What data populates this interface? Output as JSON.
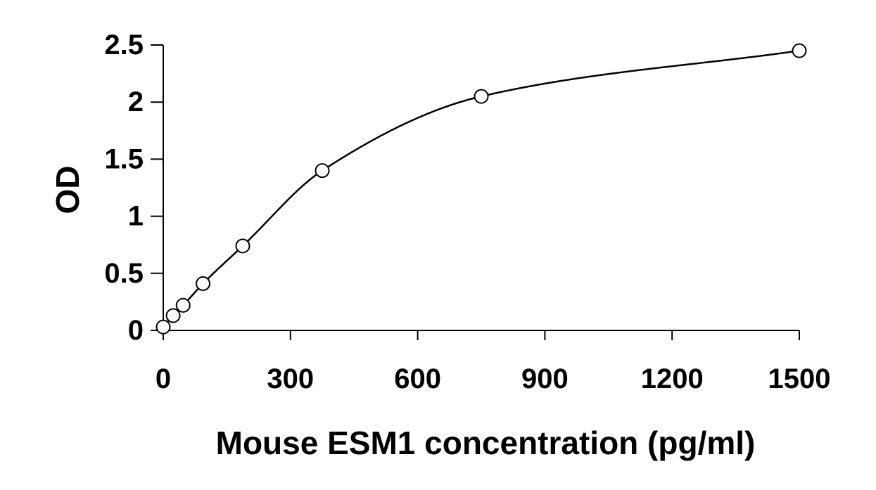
{
  "chart_data": {
    "type": "scatter",
    "xlabel": "Mouse ESM1 concentration (pg/ml)",
    "ylabel": "OD",
    "xlim": [
      0,
      1500
    ],
    "ylim": [
      0,
      2.5
    ],
    "x_ticks": [
      0,
      300,
      600,
      900,
      1200,
      1500
    ],
    "x_tick_labels": [
      "0",
      "300",
      "600",
      "900",
      "1200",
      "1500"
    ],
    "y_ticks": [
      0,
      0.5,
      1,
      1.5,
      2,
      2.5
    ],
    "y_tick_labels": [
      "0",
      "0.5",
      "1",
      "1.5",
      "2",
      "2.5"
    ],
    "grid": false,
    "series": [
      {
        "points": [
          {
            "x": 0,
            "y": 0.03
          },
          {
            "x": 23.4,
            "y": 0.13
          },
          {
            "x": 46.9,
            "y": 0.22
          },
          {
            "x": 93.8,
            "y": 0.41
          },
          {
            "x": 187.5,
            "y": 0.74
          },
          {
            "x": 375,
            "y": 1.4
          },
          {
            "x": 750,
            "y": 2.05
          },
          {
            "x": 1500,
            "y": 2.45
          }
        ],
        "marker": "open-circle",
        "trendline": "smooth-fit",
        "color": "#000000"
      }
    ]
  }
}
